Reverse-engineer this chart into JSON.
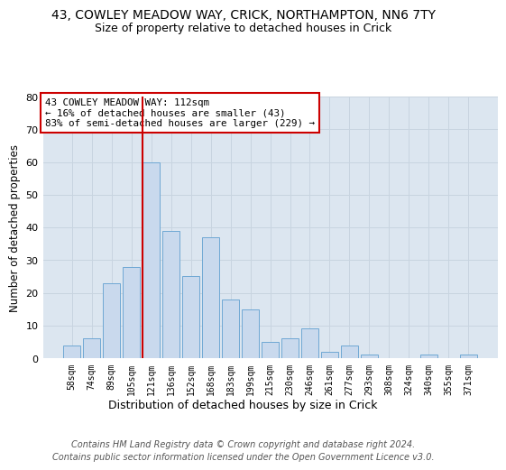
{
  "title_line1": "43, COWLEY MEADOW WAY, CRICK, NORTHAMPTON, NN6 7TY",
  "title_line2": "Size of property relative to detached houses in Crick",
  "xlabel": "Distribution of detached houses by size in Crick",
  "ylabel": "Number of detached properties",
  "categories": [
    "58sqm",
    "74sqm",
    "89sqm",
    "105sqm",
    "121sqm",
    "136sqm",
    "152sqm",
    "168sqm",
    "183sqm",
    "199sqm",
    "215sqm",
    "230sqm",
    "246sqm",
    "261sqm",
    "277sqm",
    "293sqm",
    "308sqm",
    "324sqm",
    "340sqm",
    "355sqm",
    "371sqm"
  ],
  "values": [
    4,
    6,
    23,
    28,
    60,
    39,
    25,
    37,
    18,
    15,
    5,
    6,
    9,
    2,
    4,
    1,
    0,
    0,
    1,
    0,
    1
  ],
  "bar_color": "#c9d9ed",
  "bar_edge_color": "#6fa8d4",
  "vline_color": "#cc0000",
  "annotation_text": "43 COWLEY MEADOW WAY: 112sqm\n← 16% of detached houses are smaller (43)\n83% of semi-detached houses are larger (229) →",
  "annotation_box_color": "#ffffff",
  "annotation_box_edge_color": "#cc0000",
  "ylim": [
    0,
    80
  ],
  "yticks": [
    0,
    10,
    20,
    30,
    40,
    50,
    60,
    70,
    80
  ],
  "grid_color": "#c8d4e0",
  "background_color": "#dce6f0",
  "footer_text": "Contains HM Land Registry data © Crown copyright and database right 2024.\nContains public sector information licensed under the Open Government Licence v3.0.",
  "title_fontsize": 10,
  "subtitle_fontsize": 9,
  "footer_fontsize": 7,
  "vline_bin_index": 4
}
